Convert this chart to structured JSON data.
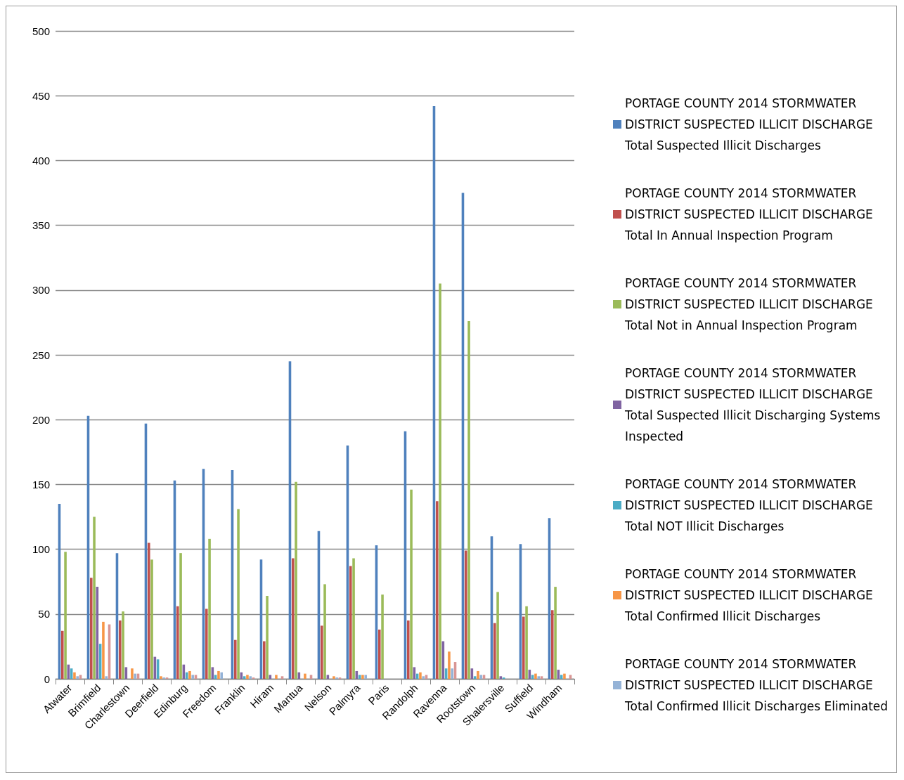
{
  "chart_data": {
    "type": "bar",
    "categories": [
      "Atwater",
      "Brimfield",
      "Charlestown",
      "Deerfield",
      "Edinburg",
      "Freedom",
      "Franklin",
      "Hiram",
      "Mantua",
      "Nelson",
      "Palmyra",
      "Paris",
      "Randolph",
      "Ravenna",
      "Rootstown",
      "Shalersville",
      "Suffield",
      "Windham"
    ],
    "series": [
      {
        "name": "PORTAGE COUNTY 2014 STORMWATER DISTRICT SUSPECTED ILLICIT DISCHARGE Total Suspected Illicit Discharges",
        "color": "#4f81bd",
        "values": [
          135,
          203,
          97,
          197,
          153,
          162,
          161,
          92,
          245,
          114,
          180,
          103,
          191,
          442,
          375,
          110,
          104,
          124
        ]
      },
      {
        "name": "PORTAGE COUNTY 2014 STORMWATER DISTRICT SUSPECTED ILLICIT DISCHARGE Total In Annual Inspection Program",
        "color": "#c0504d",
        "values": [
          37,
          78,
          45,
          105,
          56,
          54,
          30,
          29,
          93,
          41,
          87,
          38,
          45,
          137,
          99,
          43,
          48,
          53
        ]
      },
      {
        "name": "PORTAGE COUNTY 2014 STORMWATER DISTRICT SUSPECTED ILLICIT DISCHARGE Total Not in Annual Inspection Program",
        "color": "#9bbb59",
        "values": [
          98,
          125,
          52,
          92,
          97,
          108,
          131,
          64,
          152,
          73,
          93,
          65,
          146,
          305,
          276,
          67,
          56,
          71
        ]
      },
      {
        "name": "PORTAGE COUNTY 2014 STORMWATER DISTRICT SUSPECTED ILLICIT DISCHARGE Total Suspected Illicit Discharging Systems Inspected",
        "color": "#8064a2",
        "values": [
          11,
          71,
          9,
          17,
          11,
          9,
          5,
          3,
          5,
          3,
          6,
          0,
          9,
          29,
          8,
          2,
          7,
          7
        ]
      },
      {
        "name": "PORTAGE COUNTY 2014 STORMWATER DISTRICT SUSPECTED ILLICIT DISCHARGE Total NOT Illicit Discharges",
        "color": "#4bacc6",
        "values": [
          8,
          27,
          0,
          15,
          5,
          3,
          2,
          0,
          0,
          0,
          3,
          0,
          4,
          8,
          2,
          1,
          3,
          3
        ]
      },
      {
        "name": "PORTAGE COUNTY 2014 STORMWATER DISTRICT SUSPECTED ILLICIT DISCHARGE Total Confirmed Illicit Discharges",
        "color": "#f79646",
        "values": [
          5,
          44,
          8,
          2,
          6,
          6,
          3,
          3,
          4,
          2,
          3,
          0,
          5,
          21,
          6,
          0,
          4,
          4
        ]
      },
      {
        "name": "PORTAGE COUNTY 2014 STORMWATER DISTRICT SUSPECTED ILLICIT DISCHARGE Total Confirmed Illicit Discharges Eliminated",
        "color": "#95b3d7",
        "values": [
          2,
          2,
          4,
          1,
          3,
          5,
          2,
          0,
          0,
          1,
          3,
          0,
          2,
          8,
          3,
          0,
          2,
          0
        ]
      },
      {
        "color": "#d99694",
        "values": [
          3,
          42,
          4,
          1,
          3,
          0,
          1,
          2,
          3,
          1,
          0,
          0,
          3,
          13,
          3,
          0,
          2,
          3
        ]
      }
    ],
    "ylim": [
      0,
      500
    ],
    "yticks": [
      0,
      50,
      100,
      150,
      200,
      250,
      300,
      350,
      400,
      450,
      500
    ],
    "grid": "y",
    "legend": "right"
  }
}
